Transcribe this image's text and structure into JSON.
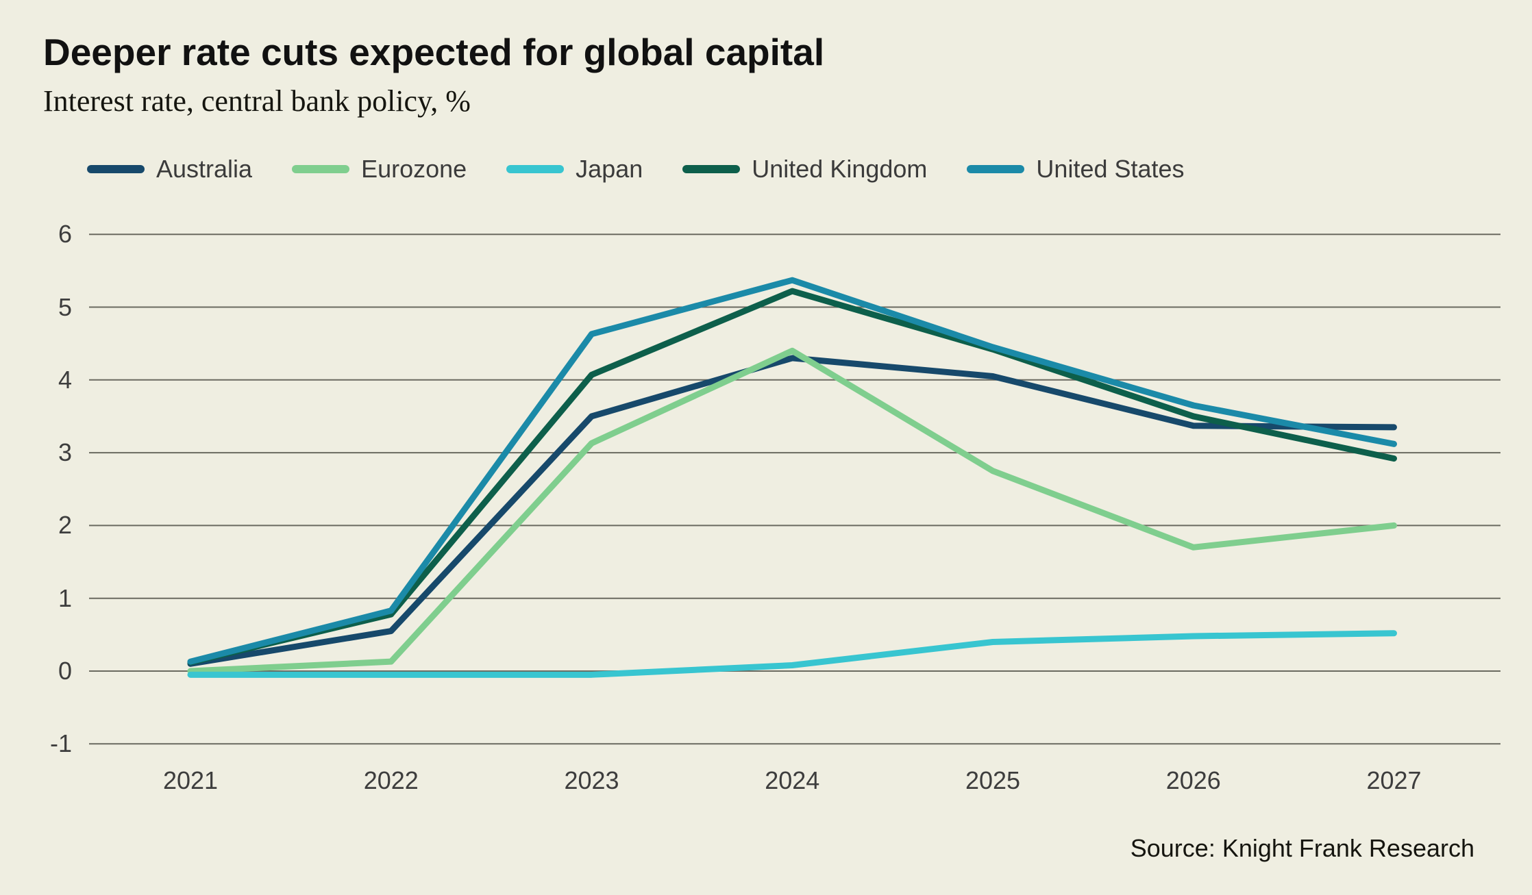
{
  "header": {
    "title": "Deeper rate cuts expected for global capital",
    "subtitle": "Interest rate, central bank policy, %"
  },
  "source": "Source: Knight Frank Research",
  "colors": {
    "background": "#EFEEE1",
    "gridline": "#53534A",
    "title_text": "#111111",
    "axis_text": "#3D3D3D",
    "legend_text": "#3B3B3B"
  },
  "chart_data": {
    "type": "line",
    "title": "Deeper rate cuts expected for global capital",
    "subtitle": "Interest rate, central bank policy, %",
    "x": [
      2021,
      2022,
      2023,
      2024,
      2025,
      2026,
      2027
    ],
    "x_labels": [
      "2021",
      "2022",
      "2023",
      "2024",
      "2025",
      "2026",
      "2027"
    ],
    "ylim": [
      -1,
      6
    ],
    "yticks": [
      6,
      5,
      4,
      3,
      2,
      1,
      0,
      -1
    ],
    "grid": "horizontal-only",
    "legend_position": "top-left",
    "units": "%",
    "series": [
      {
        "name": "Australia",
        "color": "#17496B",
        "values": [
          0.1,
          0.55,
          3.5,
          4.3,
          4.05,
          3.37,
          3.35
        ]
      },
      {
        "name": "Eurozone",
        "color": "#7FCE8E",
        "values": [
          0.0,
          0.13,
          3.13,
          4.4,
          2.75,
          1.7,
          2.0
        ]
      },
      {
        "name": "Japan",
        "color": "#38C5D0",
        "values": [
          -0.05,
          -0.05,
          -0.05,
          0.08,
          0.4,
          0.48,
          0.52
        ]
      },
      {
        "name": "United Kingdom",
        "color": "#0D5F4B",
        "values": [
          0.12,
          0.78,
          4.07,
          5.22,
          4.42,
          3.5,
          2.92
        ]
      },
      {
        "name": "United States",
        "color": "#1B8AA8",
        "values": [
          0.13,
          0.83,
          4.63,
          5.37,
          4.45,
          3.65,
          3.12
        ]
      }
    ]
  }
}
